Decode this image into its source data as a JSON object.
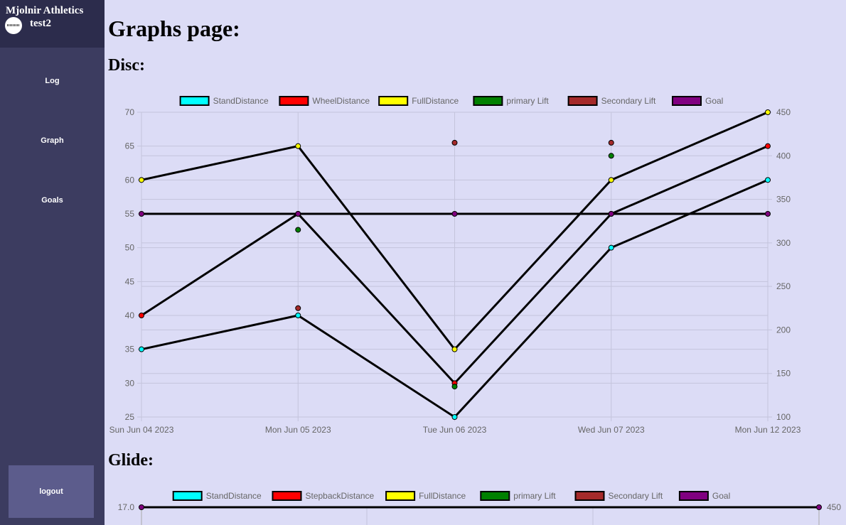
{
  "sidebar": {
    "brand": "Mjolnir Athletics",
    "username": "test2",
    "nav": [
      "Log",
      "Graph",
      "Goals"
    ],
    "logout": "logout"
  },
  "page_title": "Graphs page:",
  "sections": {
    "disc": "Disc:",
    "glide": "Glide:"
  },
  "chart_data": [
    {
      "type": "line",
      "x": [
        "Sun Jun 04 2023",
        "Mon Jun 05 2023",
        "Tue Jun 06 2023",
        "Wed Jun 07 2023",
        "Mon Jun 12 2023"
      ],
      "y_left_ticks": [
        "70",
        "65",
        "60",
        "55",
        "50",
        "45",
        "40",
        "35",
        "30",
        "25"
      ],
      "y_right_ticks": [
        "450",
        "400",
        "350",
        "300",
        "250",
        "200",
        "150",
        "100"
      ],
      "ylim_left": [
        25,
        70
      ],
      "ylim_right": [
        100,
        450
      ],
      "grid": true,
      "legend_position": "top-center",
      "series": [
        {
          "name": "StandDistance",
          "color": "#00ffff",
          "axis": "left",
          "line": true,
          "values": [
            35,
            40,
            25,
            50,
            60
          ]
        },
        {
          "name": "WheelDistance",
          "color": "#ff0000",
          "axis": "left",
          "line": true,
          "values": [
            40,
            55,
            30,
            55,
            65
          ]
        },
        {
          "name": "FullDistance",
          "color": "#ffff00",
          "axis": "left",
          "line": true,
          "values": [
            60,
            65,
            35,
            60,
            70
          ]
        },
        {
          "name": "primary Lift",
          "color": "#008000",
          "axis": "right",
          "line": false,
          "values": [
            null,
            315,
            135,
            400,
            null
          ]
        },
        {
          "name": "Secondary Lift",
          "color": "#a52a2a",
          "axis": "right",
          "line": false,
          "values": [
            null,
            225,
            415,
            415,
            null
          ]
        },
        {
          "name": "Goal",
          "color": "#800080",
          "axis": "left",
          "line": true,
          "values": [
            55,
            55,
            55,
            55,
            55
          ]
        }
      ]
    },
    {
      "type": "line",
      "y_left_ticks": [
        "17.0"
      ],
      "y_right_ticks": [
        "450"
      ],
      "grid": true,
      "legend_position": "top-center",
      "series": [
        {
          "name": "StandDistance",
          "color": "#00ffff"
        },
        {
          "name": "StepbackDistance",
          "color": "#ff0000"
        },
        {
          "name": "FullDistance",
          "color": "#ffff00"
        },
        {
          "name": "primary Lift",
          "color": "#008000"
        },
        {
          "name": "Secondary Lift",
          "color": "#a52a2a"
        },
        {
          "name": "Goal",
          "color": "#800080"
        }
      ]
    }
  ]
}
